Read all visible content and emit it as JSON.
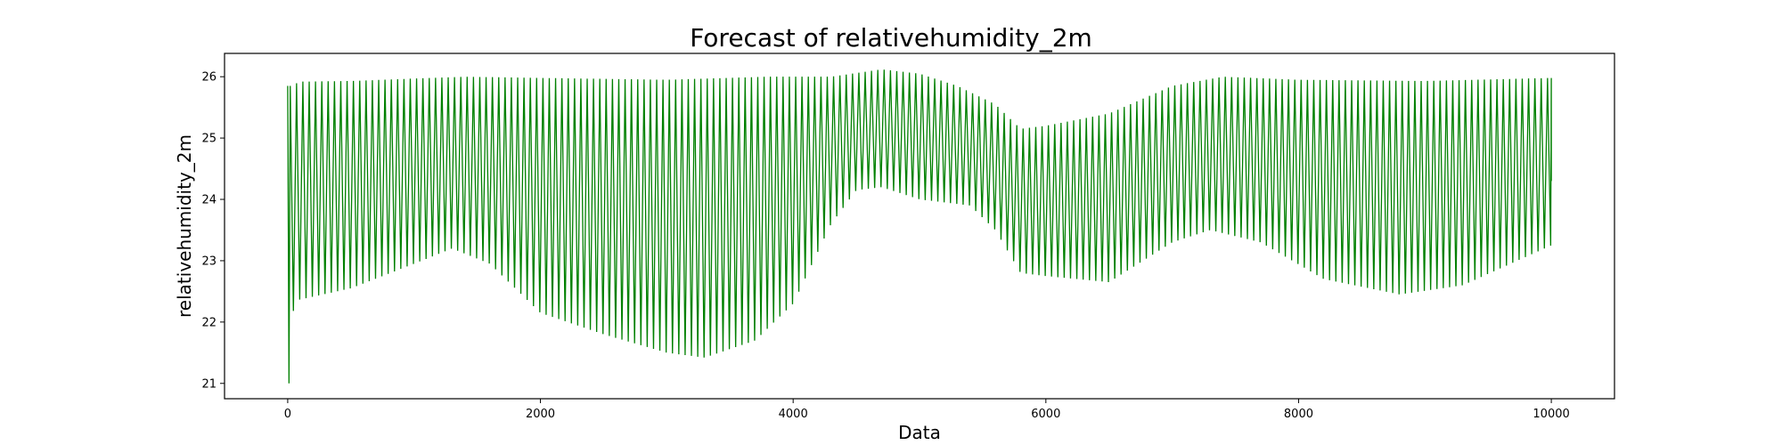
{
  "chart_data": {
    "type": "line",
    "title": "Forecast of relativehumidity_2m",
    "xlabel": "Data",
    "ylabel": "relativehumidity_2m",
    "xlim": [
      -500,
      10500
    ],
    "ylim": [
      20.75,
      26.38
    ],
    "x_ticks": [
      0,
      2000,
      4000,
      6000,
      8000,
      10000
    ],
    "y_ticks": [
      21,
      22,
      23,
      24,
      25,
      26
    ],
    "grid": false,
    "legend": "none",
    "colors": {
      "series": "#008000",
      "axes": "#000000",
      "background": "#ffffff"
    },
    "series": [
      {
        "oscillation_period": 50,
        "start_point": {
          "x": 0,
          "y": 25.85
        },
        "initial_minimum": {
          "x": 10,
          "y": 21.0
        },
        "end_point": {
          "x": 10000,
          "y": 24.3
        },
        "upper_envelope": [
          [
            20,
            25.85
          ],
          [
            100,
            25.92
          ],
          [
            500,
            25.93
          ],
          [
            1000,
            25.97
          ],
          [
            1400,
            26.0
          ],
          [
            2000,
            25.98
          ],
          [
            3000,
            25.95
          ],
          [
            3800,
            26.0
          ],
          [
            4300,
            26.0
          ],
          [
            4700,
            26.12
          ],
          [
            5000,
            26.05
          ],
          [
            5300,
            25.85
          ],
          [
            5600,
            25.55
          ],
          [
            5800,
            25.15
          ],
          [
            6000,
            25.2
          ],
          [
            6500,
            25.4
          ],
          [
            7000,
            25.85
          ],
          [
            7400,
            26.0
          ],
          [
            8000,
            25.95
          ],
          [
            9000,
            25.93
          ],
          [
            10000,
            25.98
          ]
        ],
        "lower_envelope": [
          [
            20,
            21.9
          ],
          [
            60,
            22.35
          ],
          [
            500,
            22.55
          ],
          [
            1000,
            22.95
          ],
          [
            1300,
            23.2
          ],
          [
            1600,
            22.95
          ],
          [
            2000,
            22.15
          ],
          [
            2500,
            21.8
          ],
          [
            3000,
            21.5
          ],
          [
            3300,
            21.42
          ],
          [
            3700,
            21.7
          ],
          [
            4000,
            22.3
          ],
          [
            4300,
            23.6
          ],
          [
            4500,
            24.15
          ],
          [
            4700,
            24.2
          ],
          [
            5000,
            24.0
          ],
          [
            5400,
            23.9
          ],
          [
            5600,
            23.5
          ],
          [
            5800,
            22.8
          ],
          [
            6000,
            22.75
          ],
          [
            6500,
            22.65
          ],
          [
            7000,
            23.3
          ],
          [
            7300,
            23.5
          ],
          [
            7700,
            23.3
          ],
          [
            8200,
            22.7
          ],
          [
            8800,
            22.45
          ],
          [
            9300,
            22.6
          ],
          [
            10000,
            23.25
          ]
        ]
      }
    ]
  }
}
